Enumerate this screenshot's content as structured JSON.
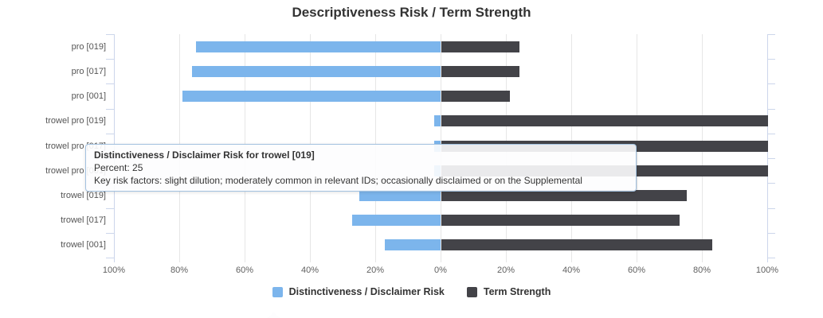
{
  "chart_data": {
    "type": "bar",
    "orientation": "horizontal_diverging",
    "title": "Descriptiveness Risk / Term Strength",
    "categories": [
      "pro [019]",
      "pro [017]",
      "pro [001]",
      "trowel pro [019]",
      "trowel pro [017]",
      "trowel pro [001]",
      "trowel [019]",
      "trowel [017]",
      "trowel [001]"
    ],
    "series": [
      {
        "name": "Distinctiveness / Disclaimer Risk",
        "color": "#7cb5ec",
        "side": "left",
        "values": [
          75,
          76,
          79,
          2,
          2,
          2,
          25,
          27,
          17
        ]
      },
      {
        "name": "Term Strength",
        "color": "#434348",
        "side": "right",
        "values": [
          24,
          24,
          21,
          100,
          100,
          100,
          75,
          73,
          83
        ]
      }
    ],
    "axis": {
      "unit": "%",
      "max_percent_each_side": 100,
      "tick_step_percent": 20,
      "tick_labels": [
        "100%",
        "80%",
        "60%",
        "40%",
        "20%",
        "0%",
        "20%",
        "40%",
        "60%",
        "80%",
        "100%"
      ]
    },
    "legend_position": "bottom-center",
    "grid": "vertical"
  },
  "tooltip": {
    "title": "Distinctiveness / Disclaimer Risk for trowel [019]",
    "percent": "Percent: 25",
    "factors": "Key risk factors: slight dilution; moderately common in relevant IDs; occasionally disclaimed or on the Supplemental"
  },
  "colors": {
    "risk": "#7cb5ec",
    "strength": "#434348",
    "axis_line": "#ccd6eb",
    "grid_line": "#e6e6e6",
    "tooltip_border": "#a3c2e0",
    "title_text": "#333333",
    "label_text": "#606060"
  }
}
